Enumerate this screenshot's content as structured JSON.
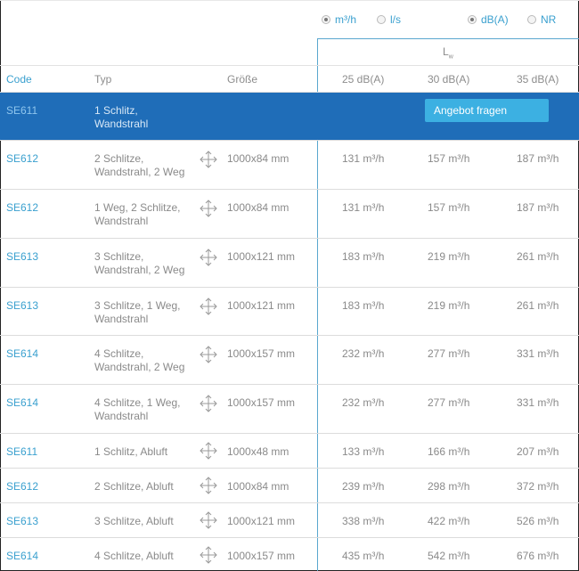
{
  "toggles": {
    "unit_m3h": {
      "label": "m³/h",
      "checked": true
    },
    "unit_ls": {
      "label": "l/s",
      "checked": false
    },
    "unit_dba": {
      "label": "dB(A)",
      "checked": true
    },
    "unit_nr": {
      "label": "NR",
      "checked": false
    }
  },
  "lw_header": {
    "main": "L",
    "sub": "w"
  },
  "columns": {
    "code": "Code",
    "typ": "Typ",
    "size": "Größe",
    "v1": "25 dB(A)",
    "v2": "30 dB(A)",
    "v3": "35 dB(A)"
  },
  "selected_row": {
    "code": "SE611",
    "typ_line1": "1 Schlitz,",
    "typ_line2": "Wandstrahl",
    "button": "Angebot fragen"
  },
  "rows": [
    {
      "code": "SE612",
      "typ1": "2 Schlitze,",
      "typ2": "Wandstrahl, 2 Weg",
      "size": "1000x84 mm",
      "v1": "131",
      "v2": "157",
      "v3": "187"
    },
    {
      "code": "SE612",
      "typ1": "1 Weg, 2 Schlitze,",
      "typ2": "Wandstrahl",
      "size": "1000x84 mm",
      "v1": "131",
      "v2": "157",
      "v3": "187"
    },
    {
      "code": "SE613",
      "typ1": "3 Schlitze,",
      "typ2": "Wandstrahl, 2 Weg",
      "size": "1000x121 mm",
      "v1": "183",
      "v2": "219",
      "v3": "261"
    },
    {
      "code": "SE613",
      "typ1": "3 Schlitze, 1 Weg,",
      "typ2": "Wandstrahl",
      "size": "1000x121 mm",
      "v1": "183",
      "v2": "219",
      "v3": "261"
    },
    {
      "code": "SE614",
      "typ1": "4 Schlitze,",
      "typ2": "Wandstrahl, 2 Weg",
      "size": "1000x157 mm",
      "v1": "232",
      "v2": "277",
      "v3": "331"
    },
    {
      "code": "SE614",
      "typ1": "4 Schlitze, 1 Weg,",
      "typ2": "Wandstrahl",
      "size": "1000x157 mm",
      "v1": "232",
      "v2": "277",
      "v3": "331"
    },
    {
      "code": "SE611",
      "typ1": "1 Schlitz, Abluft",
      "typ2": "",
      "size": "1000x48 mm",
      "v1": "133",
      "v2": "166",
      "v3": "207"
    },
    {
      "code": "SE612",
      "typ1": "2 Schlitze, Abluft",
      "typ2": "",
      "size": "1000x84 mm",
      "v1": "239",
      "v2": "298",
      "v3": "372"
    },
    {
      "code": "SE613",
      "typ1": "3 Schlitze, Abluft",
      "typ2": "",
      "size": "1000x121 mm",
      "v1": "338",
      "v2": "422",
      "v3": "526"
    },
    {
      "code": "SE614",
      "typ1": "4 Schlitze, Abluft",
      "typ2": "",
      "size": "1000x157 mm",
      "v1": "435",
      "v2": "542",
      "v3": "676"
    }
  ],
  "unit_label": "m³/h",
  "icons": {
    "size_icon": "move-arrows-icon"
  },
  "colors": {
    "accent": "#3aa0cf",
    "selected_row": "#1f6db8",
    "button": "#3cb0e2",
    "divider": "#5aa7cf"
  }
}
